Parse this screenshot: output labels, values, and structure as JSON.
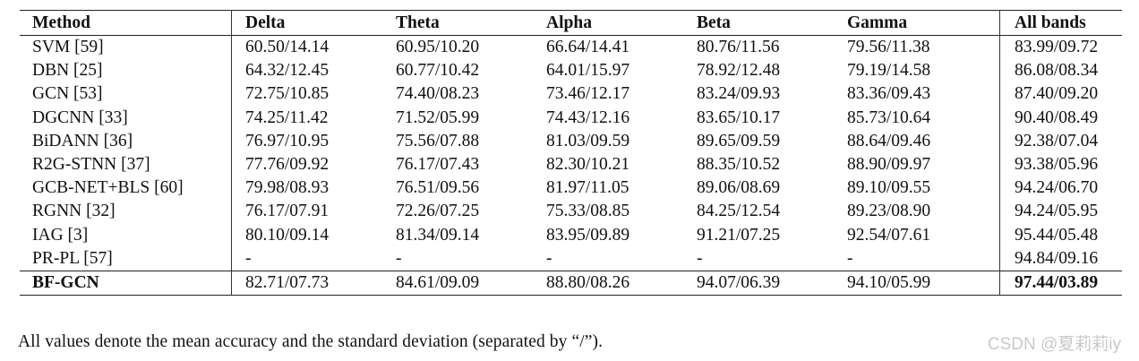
{
  "table": {
    "headers": [
      "Method",
      "Delta",
      "Theta",
      "Alpha",
      "Beta",
      "Gamma",
      "All bands"
    ],
    "rows": [
      [
        "SVM [59]",
        "60.50/14.14",
        "60.95/10.20",
        "66.64/14.41",
        "80.76/11.56",
        "79.56/11.38",
        "83.99/09.72"
      ],
      [
        "DBN [25]",
        "64.32/12.45",
        "60.77/10.42",
        "64.01/15.97",
        "78.92/12.48",
        "79.19/14.58",
        "86.08/08.34"
      ],
      [
        "GCN [53]",
        "72.75/10.85",
        "74.40/08.23",
        "73.46/12.17",
        "83.24/09.93",
        "83.36/09.43",
        "87.40/09.20"
      ],
      [
        "DGCNN [33]",
        "74.25/11.42",
        "71.52/05.99",
        "74.43/12.16",
        "83.65/10.17",
        "85.73/10.64",
        "90.40/08.49"
      ],
      [
        "BiDANN [36]",
        "76.97/10.95",
        "75.56/07.88",
        "81.03/09.59",
        "89.65/09.59",
        "88.64/09.46",
        "92.38/07.04"
      ],
      [
        "R2G-STNN [37]",
        "77.76/09.92",
        "76.17/07.43",
        "82.30/10.21",
        "88.35/10.52",
        "88.90/09.97",
        "93.38/05.96"
      ],
      [
        "GCB-NET+BLS [60]",
        "79.98/08.93",
        "76.51/09.56",
        "81.97/11.05",
        "89.06/08.69",
        "89.10/09.55",
        "94.24/06.70"
      ],
      [
        "RGNN [32]",
        "76.17/07.91",
        "72.26/07.25",
        "75.33/08.85",
        "84.25/12.54",
        "89.23/08.90",
        "94.24/05.95"
      ],
      [
        "IAG [3]",
        "80.10/09.14",
        "81.34/09.14",
        "83.95/09.89",
        "91.21/07.25",
        "92.54/07.61",
        "95.44/05.48"
      ],
      [
        "PR-PL [57]",
        "-",
        "-",
        "-",
        "-",
        "-",
        "94.84/09.16"
      ]
    ],
    "highlight_row": [
      "BF-GCN",
      "82.71/07.73",
      "84.61/09.09",
      "88.80/08.26",
      "94.07/06.39",
      "94.10/05.99",
      "97.44/03.89"
    ]
  },
  "caption": "All values denote the mean accuracy and the standard deviation (separated by “/”).",
  "watermark": "CSDN @夏莉莉iy"
}
